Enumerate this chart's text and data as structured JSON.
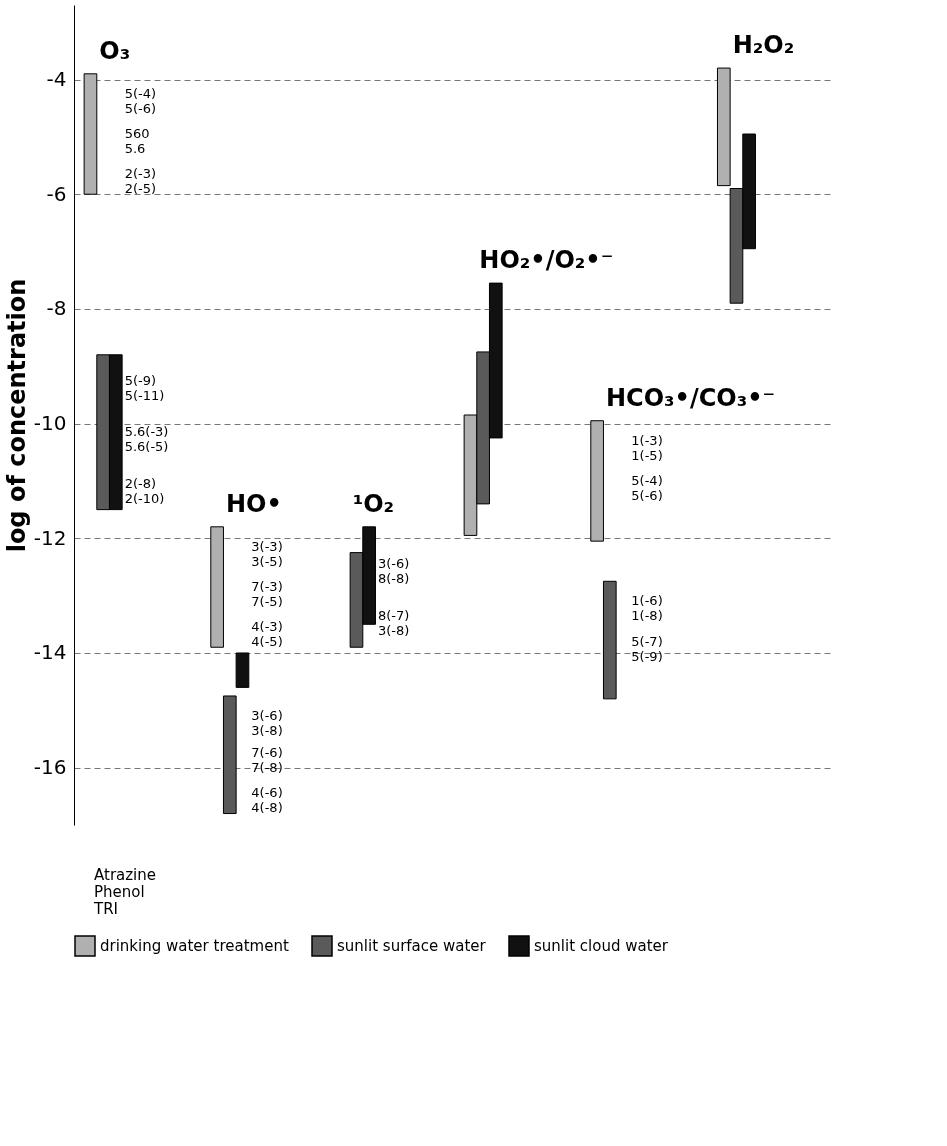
{
  "chart_data": {
    "type": "bar",
    "ylabel": "log of concentration",
    "categories": [
      "O₃",
      "HO•",
      "¹O₂",
      "HO₂•/O₂•⁻",
      "HCO₃•/CO₃•⁻",
      "H₂O₂"
    ],
    "series": [
      {
        "name": "drinking water treatment",
        "color": "#b0b0b0",
        "base": [
          -6,
          -13.9,
          null,
          -11.95,
          -12.05,
          -5.85
        ],
        "values": [
          2.1,
          2.1,
          null,
          2.1,
          2.1,
          2.05
        ]
      },
      {
        "name": "sunlit surface water",
        "color": "#5a5a5a",
        "base": [
          -11.5,
          -16.8,
          -13.9,
          -11.4,
          -14.8,
          -7.9
        ],
        "values": [
          2.7,
          2.05,
          1.65,
          2.65,
          2.05,
          2.0
        ]
      },
      {
        "name": "sunlit cloud water",
        "color": "#111111",
        "base": [
          -11.5,
          -14.6,
          -13.5,
          -10.25,
          null,
          -6.95
        ],
        "values": [
          2.7,
          0.6,
          1.7,
          2.7,
          null,
          2.0
        ]
      }
    ],
    "ylim": [
      -17,
      -2.7
    ],
    "yticks": [
      {
        "value": -4,
        "label": "-4"
      },
      {
        "value": -6,
        "label": "-6"
      },
      {
        "value": -8,
        "label": "-8"
      },
      {
        "value": -10,
        "label": "-10"
      },
      {
        "value": -12,
        "label": "-12"
      },
      {
        "value": -14,
        "label": "-14"
      },
      {
        "value": -16,
        "label": "-16"
      }
    ],
    "grid": "y",
    "legend": "bottom",
    "annotations": [
      "5(-4)\n5(-6)",
      "560\n5.6",
      "2(-3)\n2(-5)",
      "5(-9)\n5(-11)",
      "5.6(-3)\n5.6(-5)",
      "2(-8)\n2(-10)",
      "3(-3)\n3(-5)",
      "7(-3)\n7(-5)",
      "4(-3)\n4(-5)",
      "3(-6)\n3(-8)",
      "7(-6)\n7(-8)",
      "4(-6)\n4(-8)",
      "8(-7)\n3(-8)",
      "3(-6)\n8(-8)",
      "1(-3)\n1(-5)",
      "5(-4)\n5(-6)",
      "1(-6)\n1(-8)",
      "5(-7)\n5(-9)",
      "Atrazine",
      "Phenol",
      "TRI"
    ]
  }
}
